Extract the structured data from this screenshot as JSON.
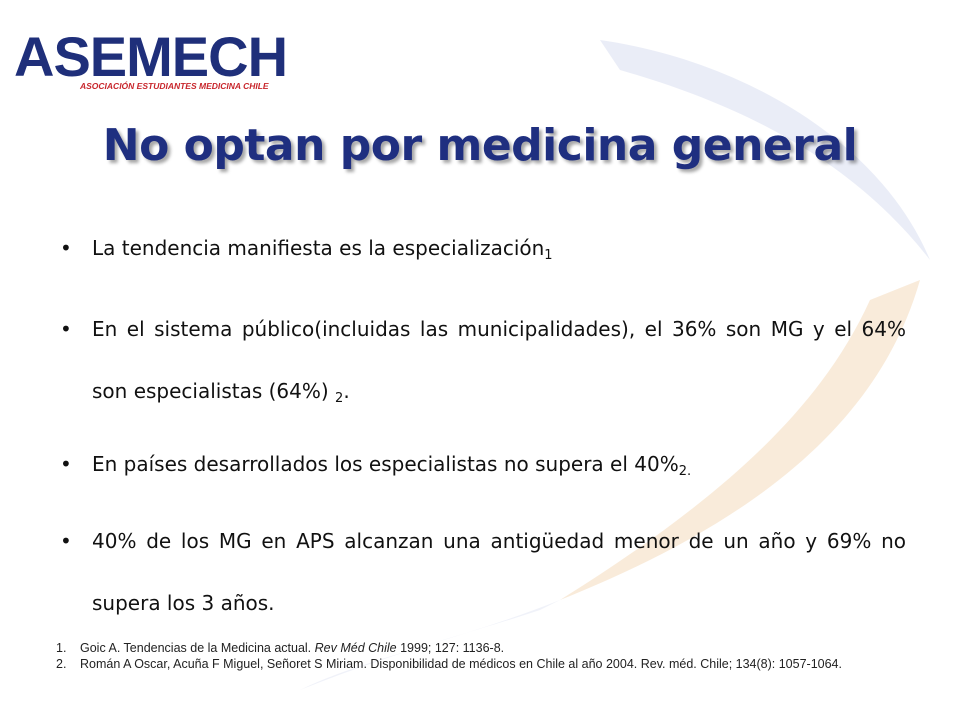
{
  "logo": {
    "text": "ASEMECH",
    "subtitle": "ASOCIACIÓN ESTUDIANTES MEDICINA CHILE",
    "colors": {
      "primary": "#1f2f7a",
      "accent": "#c8262c"
    }
  },
  "title": "No optan por medicina general",
  "bullets": [
    {
      "text": "La tendencia manifiesta  es la especialización",
      "sub": "1",
      "tail": ""
    },
    {
      "text": "En el sistema público(incluidas las municipalidades), el 36% son MG y el 64% son  especialistas (64%) ",
      "sub": "2",
      "tail": "."
    },
    {
      "text": "En países desarrollados los especialistas no supera el 40%",
      "sub": "2.",
      "tail": ""
    },
    {
      "text": "40% de los MG en APS alcanzan una antigüedad menor de un año y 69% no supera los 3 años.",
      "sub": "",
      "tail": ""
    }
  ],
  "references": [
    {
      "num": "1.",
      "pre": "Goic A. Tendencias de la Medicina actual. ",
      "journal": "Rev Méd Chile",
      "post": " 1999; 127: 1136-8."
    },
    {
      "num": "2.",
      "pre": "Román A Oscar, Acuña F Miguel, Señoret S Miriam. Disponibilidad de médicos en Chile al año 2004. Rev. méd. Chile; 134(8): 1057-1064.",
      "journal": "",
      "post": ""
    }
  ]
}
